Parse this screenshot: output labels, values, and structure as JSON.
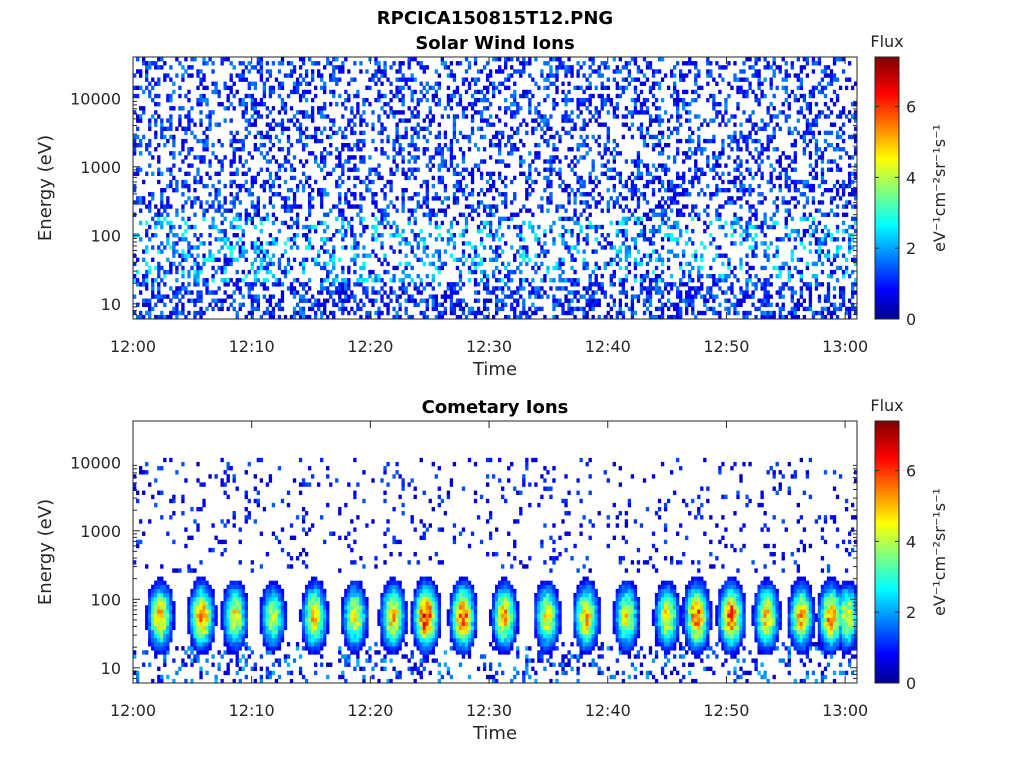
{
  "figure_title": "RPCICA150815T12.PNG",
  "colors": {
    "axis": "#262626",
    "colormap": [
      "#00008f",
      "#0000ff",
      "#0080ff",
      "#00ffff",
      "#80ff80",
      "#ffff00",
      "#ff8000",
      "#ff0000",
      "#800000"
    ]
  },
  "chart_data": [
    {
      "type": "heatmap",
      "title": "Solar Wind Ions",
      "xlabel": "Time",
      "ylabel": "Energy (eV)",
      "x_tick_labels": [
        "12:00",
        "12:10",
        "12:20",
        "12:30",
        "12:40",
        "12:50",
        "13:00"
      ],
      "x_range": [
        "12:00",
        "13:01"
      ],
      "y_scale": "log",
      "y_ticks": [
        10,
        100,
        1000,
        10000
      ],
      "y_tick_labels": [
        "10",
        "100",
        "1000",
        "10000"
      ],
      "y_range": [
        6,
        40000
      ],
      "colorbar": {
        "label": "Flux",
        "units_label": "eV⁻¹cm⁻²sr⁻¹s⁻¹",
        "range": [
          0,
          7.4
        ],
        "ticks": [
          "0",
          "2",
          "4",
          "6"
        ]
      },
      "pattern": "sparse low flux (~0.5-2) across 10-40000 eV; moderate flux (~2-3) near 30-150 eV"
    },
    {
      "type": "heatmap",
      "title": "Cometary Ions",
      "xlabel": "Time",
      "ylabel": "Energy (eV)",
      "x_tick_labels": [
        "12:00",
        "12:10",
        "12:20",
        "12:30",
        "12:40",
        "12:50",
        "13:00"
      ],
      "x_range": [
        "12:00",
        "13:01"
      ],
      "y_scale": "log",
      "y_ticks": [
        10,
        100,
        1000,
        10000
      ],
      "y_tick_labels": [
        "10",
        "100",
        "1000",
        "10000"
      ],
      "y_range": [
        6,
        40000
      ],
      "colorbar": {
        "label": "Flux",
        "units_label": "eV⁻¹cm⁻²sr⁻¹s⁻¹",
        "range": [
          0,
          7.4
        ],
        "ticks": [
          "0",
          "2",
          "4",
          "6"
        ]
      },
      "burst_times_min": [
        2.3,
        5.8,
        8.6,
        11.8,
        15.3,
        18.7,
        21.9,
        24.7,
        27.8,
        31.3,
        34.9,
        38.2,
        41.6,
        45.0,
        47.5,
        50.4,
        53.4,
        56.3,
        58.8,
        60.2
      ],
      "burst_peak_flux": [
        5.5,
        6.0,
        5.0,
        4.5,
        5.5,
        5.0,
        5.5,
        7.0,
        6.5,
        5.5,
        5.0,
        5.5,
        5.0,
        5.0,
        6.5,
        6.5,
        5.5,
        5.5,
        6.0,
        5.0
      ],
      "pattern": "periodic bursts of high flux (4-7) at ~15-500 eV; sparse low flux up to ~10000 eV"
    }
  ]
}
